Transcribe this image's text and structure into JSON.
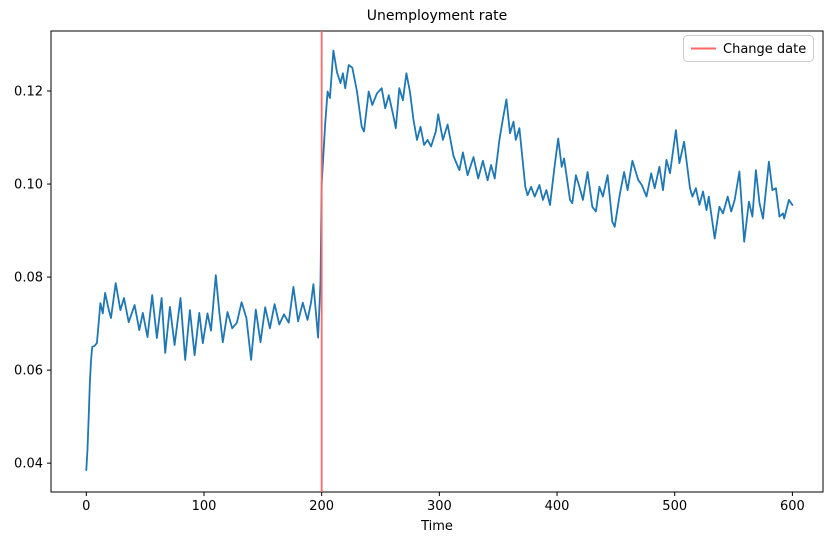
{
  "chart_data": {
    "type": "line",
    "title": "Unemployment rate",
    "xlabel": "Time",
    "ylabel": "",
    "grid": false,
    "xlim": [
      -30,
      626
    ],
    "ylim": [
      0.0338,
      0.1329
    ],
    "xticks": [
      0,
      100,
      200,
      300,
      400,
      500,
      600
    ],
    "xtick_labels": [
      "0",
      "100",
      "200",
      "300",
      "400",
      "500",
      "600"
    ],
    "yticks": [
      0.04,
      0.06,
      0.08,
      0.1,
      0.12
    ],
    "ytick_labels": [
      "0.04",
      "0.06",
      "0.08",
      "0.10",
      "0.12"
    ],
    "legend": {
      "position": "upper right",
      "entries": [
        {
          "label": "Change date",
          "color": "#ff6666"
        }
      ]
    },
    "annotations": [
      {
        "type": "vline",
        "x": 200,
        "color": "#ff6666",
        "label": "Change date"
      }
    ],
    "series": [
      {
        "name": "Unemployment rate",
        "color": "#1f77b4",
        "x": [
          0,
          1,
          2,
          3,
          4,
          5,
          7,
          9,
          12,
          14,
          16,
          19,
          21,
          25,
          29,
          32,
          36,
          41,
          45,
          48,
          52,
          56,
          60,
          64,
          67,
          71,
          75,
          80,
          84,
          88,
          92,
          96,
          99,
          103,
          106,
          110,
          113,
          116,
          120,
          124,
          128,
          132,
          136,
          140,
          144,
          148,
          152,
          156,
          160,
          164,
          168,
          172,
          176,
          180,
          184,
          188,
          191,
          193,
          197,
          199,
          200,
          203,
          205,
          207,
          210,
          213,
          216,
          218,
          220,
          223,
          226,
          230,
          234,
          236,
          240,
          243,
          247,
          251,
          254,
          257,
          261,
          263,
          266,
          269,
          272,
          275,
          278,
          281,
          284,
          287,
          290,
          293,
          297,
          299,
          303,
          307,
          312,
          317,
          320,
          324,
          329,
          333,
          337,
          341,
          344,
          347,
          351,
          354,
          357,
          360,
          363,
          365,
          368,
          373,
          375,
          378,
          381,
          385,
          388,
          391,
          394,
          398,
          401,
          404,
          406,
          411,
          413,
          416,
          419,
          422,
          426,
          430,
          433,
          436,
          439,
          443,
          447,
          449,
          453,
          457,
          460,
          464,
          469,
          472,
          476,
          480,
          483,
          487,
          490,
          493,
          496,
          501,
          504,
          508,
          513,
          515,
          518,
          521,
          524,
          527,
          529,
          534,
          538,
          541,
          545,
          548,
          551,
          555,
          559,
          563,
          566,
          569,
          572,
          575,
          580,
          583,
          586,
          589,
          592,
          593,
          597,
          600
        ],
        "y": [
          0.0385,
          0.043,
          0.05,
          0.057,
          0.062,
          0.065,
          0.0652,
          0.0658,
          0.0744,
          0.0722,
          0.0766,
          0.073,
          0.0712,
          0.0787,
          0.0729,
          0.0755,
          0.0703,
          0.074,
          0.0686,
          0.0723,
          0.0671,
          0.0761,
          0.0669,
          0.0755,
          0.0637,
          0.0736,
          0.0654,
          0.0755,
          0.0622,
          0.0729,
          0.0632,
          0.0723,
          0.0658,
          0.0722,
          0.0685,
          0.0804,
          0.0725,
          0.066,
          0.0725,
          0.069,
          0.0702,
          0.0746,
          0.0712,
          0.0622,
          0.073,
          0.066,
          0.0735,
          0.069,
          0.0742,
          0.0698,
          0.072,
          0.0702,
          0.0779,
          0.0705,
          0.0745,
          0.0708,
          0.0746,
          0.0785,
          0.067,
          0.079,
          0.1,
          0.113,
          0.1199,
          0.1185,
          0.1287,
          0.124,
          0.1217,
          0.1238,
          0.1206,
          0.1256,
          0.125,
          0.1199,
          0.1123,
          0.1113,
          0.1199,
          0.117,
          0.1195,
          0.1206,
          0.1163,
          0.1191,
          0.1145,
          0.112,
          0.1206,
          0.118,
          0.1238,
          0.1199,
          0.1138,
          0.1095,
          0.1123,
          0.1084,
          0.1095,
          0.1081,
          0.1113,
          0.115,
          0.1095,
          0.1128,
          0.106,
          0.103,
          0.1068,
          0.1019,
          0.1058,
          0.1012,
          0.105,
          0.1008,
          0.1041,
          0.1012,
          0.1095,
          0.114,
          0.1182,
          0.1109,
          0.1134,
          0.1095,
          0.112,
          0.0994,
          0.0976,
          0.0994,
          0.0973,
          0.0998,
          0.0966,
          0.0987,
          0.0955,
          0.104,
          0.1098,
          0.1037,
          0.1055,
          0.0966,
          0.0959,
          0.1019,
          0.0994,
          0.0966,
          0.1026,
          0.0951,
          0.0941,
          0.0994,
          0.0973,
          0.1019,
          0.0919,
          0.0908,
          0.0973,
          0.1026,
          0.0987,
          0.105,
          0.1009,
          0.0998,
          0.0973,
          0.1023,
          0.0991,
          0.1037,
          0.0987,
          0.1052,
          0.1023,
          0.1116,
          0.1045,
          0.1091,
          0.0991,
          0.0973,
          0.0991,
          0.0955,
          0.0984,
          0.0944,
          0.0973,
          0.0883,
          0.0951,
          0.0937,
          0.0973,
          0.0941,
          0.0966,
          0.1027,
          0.0876,
          0.0962,
          0.093,
          0.103,
          0.0959,
          0.0926,
          0.1048,
          0.0987,
          0.0991,
          0.093,
          0.0937,
          0.0926,
          0.0966,
          0.0955
        ]
      }
    ]
  }
}
